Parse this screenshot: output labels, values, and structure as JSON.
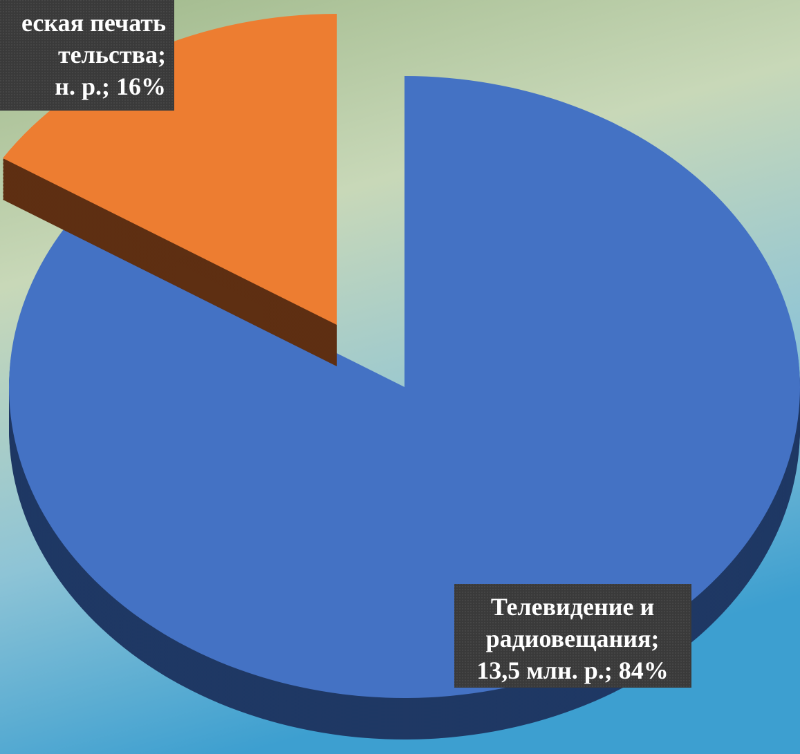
{
  "chart_data": {
    "type": "pie",
    "categories": [
      [
        "Телевидение и",
        "радиовещания;",
        "13,5 млн. р.; 84%"
      ],
      [
        "еская печать",
        "тельства;",
        "н. р.; 16%"
      ]
    ],
    "values": [
      84,
      16
    ],
    "colors": [
      "#4472c4",
      "#ed7d31"
    ],
    "side_colors": [
      "#1f3864",
      "#5e2f12"
    ],
    "exploded": [
      false,
      true
    ]
  }
}
